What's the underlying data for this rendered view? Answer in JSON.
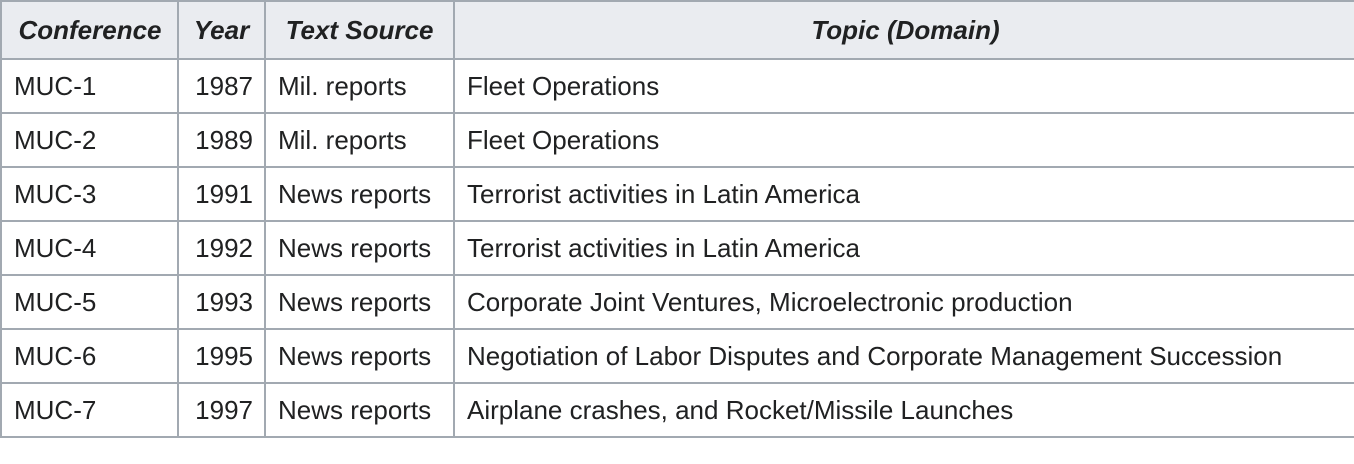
{
  "headers": {
    "conference": "Conference",
    "year": "Year",
    "text_source": "Text Source",
    "topic": "Topic (Domain)"
  },
  "rows": [
    {
      "conference": "MUC-1",
      "year": "1987",
      "text_source": "Mil. reports",
      "topic": "Fleet Operations"
    },
    {
      "conference": "MUC-2",
      "year": "1989",
      "text_source": "Mil. reports",
      "topic": "Fleet Operations"
    },
    {
      "conference": "MUC-3",
      "year": "1991",
      "text_source": "News reports",
      "topic": "Terrorist activities in Latin America"
    },
    {
      "conference": "MUC-4",
      "year": "1992",
      "text_source": "News reports",
      "topic": "Terrorist activities in Latin America"
    },
    {
      "conference": "MUC-5",
      "year": "1993",
      "text_source": "News reports",
      "topic": "Corporate Joint Ventures, Microelectronic production"
    },
    {
      "conference": "MUC-6",
      "year": "1995",
      "text_source": "News reports",
      "topic": "Negotiation of Labor Disputes and Corporate Management Succession"
    },
    {
      "conference": "MUC-7",
      "year": "1997",
      "text_source": "News reports",
      "topic": "Airplane crashes, and Rocket/Missile Launches"
    }
  ],
  "colors": {
    "border": "#a2a9b1",
    "header_bg": "#eaecf0",
    "text": "#202122"
  }
}
